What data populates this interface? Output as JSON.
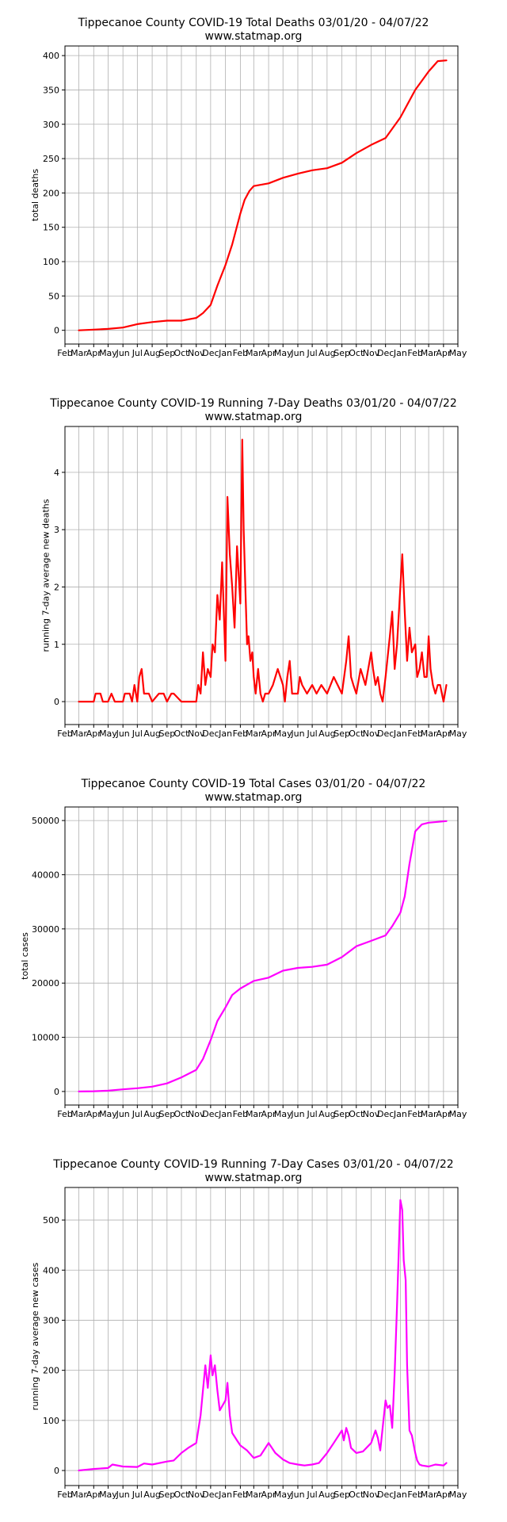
{
  "chart_data": [
    {
      "type": "line",
      "title": "Tippecanoe County COVID-19 Total Deaths 03/01/20 - 04/07/22",
      "subtitle": "www.statmap.org",
      "ylabel": "total deaths",
      "xlabel": "",
      "color": "#ff0000",
      "grid": true,
      "ylim": [
        -20,
        414
      ],
      "yticks": [
        0,
        50,
        100,
        150,
        200,
        250,
        300,
        350,
        400
      ],
      "xlim": [
        "2020-02-01",
        "2022-05-01"
      ],
      "xtick_labels": [
        "Feb",
        "Mar",
        "Apr",
        "May",
        "Jun",
        "Jul",
        "Aug",
        "Sep",
        "Oct",
        "Nov",
        "Dec",
        "Jan",
        "Feb",
        "Mar",
        "Apr",
        "May",
        "Jun",
        "Jul",
        "Aug",
        "Sep",
        "Oct",
        "Nov",
        "Dec",
        "Jan",
        "Feb",
        "Mar",
        "Apr",
        "May"
      ],
      "series": [
        {
          "x": [
            "2020-03-01",
            "2020-04-01",
            "2020-05-01",
            "2020-06-01",
            "2020-07-01",
            "2020-08-01",
            "2020-09-01",
            "2020-10-01",
            "2020-11-01",
            "2020-11-15",
            "2020-12-01",
            "2020-12-15",
            "2021-01-01",
            "2021-01-15",
            "2021-02-01",
            "2021-02-10",
            "2021-02-20",
            "2021-03-01",
            "2021-04-01",
            "2021-05-01",
            "2021-06-01",
            "2021-07-01",
            "2021-08-01",
            "2021-09-01",
            "2021-10-01",
            "2021-11-01",
            "2021-12-01",
            "2022-01-01",
            "2022-02-01",
            "2022-03-01",
            "2022-03-20",
            "2022-04-07"
          ],
          "y": [
            0,
            1,
            2,
            4,
            9,
            12,
            14,
            14,
            18,
            25,
            37,
            65,
            95,
            125,
            170,
            190,
            203,
            210,
            214,
            222,
            228,
            233,
            236,
            244,
            258,
            270,
            280,
            310,
            350,
            377,
            392,
            393
          ]
        }
      ]
    },
    {
      "type": "line",
      "title": "Tippecanoe County COVID-19 Running 7-Day Deaths 03/01/20 - 04/07/22",
      "subtitle": "www.statmap.org",
      "ylabel": "running 7-day average new deaths",
      "xlabel": "",
      "color": "#ff0000",
      "grid": true,
      "ylim": [
        -0.4,
        4.8
      ],
      "yticks": [
        0,
        1,
        2,
        3,
        4
      ],
      "xlim": [
        "2020-02-01",
        "2022-05-01"
      ],
      "xtick_labels": [
        "Feb",
        "Mar",
        "Apr",
        "May",
        "Jun",
        "Jul",
        "Aug",
        "Sep",
        "Oct",
        "Nov",
        "Dec",
        "Jan",
        "Feb",
        "Mar",
        "Apr",
        "May",
        "Jun",
        "Jul",
        "Aug",
        "Sep",
        "Oct",
        "Nov",
        "Dec",
        "Jan",
        "Feb",
        "Mar",
        "Apr",
        "May"
      ],
      "series": [
        {
          "x": [
            "2020-03-01",
            "2020-04-01",
            "2020-04-05",
            "2020-04-15",
            "2020-04-20",
            "2020-05-01",
            "2020-05-08",
            "2020-05-15",
            "2020-06-01",
            "2020-06-05",
            "2020-06-15",
            "2020-06-20",
            "2020-06-25",
            "2020-07-01",
            "2020-07-05",
            "2020-07-10",
            "2020-07-15",
            "2020-07-25",
            "2020-08-01",
            "2020-08-15",
            "2020-08-25",
            "2020-09-01",
            "2020-09-10",
            "2020-09-15",
            "2020-10-01",
            "2020-11-01",
            "2020-11-05",
            "2020-11-10",
            "2020-11-15",
            "2020-11-20",
            "2020-11-25",
            "2020-12-01",
            "2020-12-05",
            "2020-12-10",
            "2020-12-15",
            "2020-12-20",
            "2020-12-25",
            "2021-01-01",
            "2021-01-05",
            "2021-01-10",
            "2021-01-15",
            "2021-01-20",
            "2021-01-25",
            "2021-02-01",
            "2021-02-05",
            "2021-02-08",
            "2021-02-12",
            "2021-02-15",
            "2021-02-18",
            "2021-02-22",
            "2021-02-26",
            "2021-03-01",
            "2021-03-05",
            "2021-03-10",
            "2021-03-15",
            "2021-03-20",
            "2021-03-25",
            "2021-04-01",
            "2021-04-10",
            "2021-04-20",
            "2021-05-01",
            "2021-05-05",
            "2021-05-10",
            "2021-05-15",
            "2021-05-20",
            "2021-06-01",
            "2021-06-05",
            "2021-06-10",
            "2021-06-20",
            "2021-07-01",
            "2021-07-10",
            "2021-07-20",
            "2021-08-01",
            "2021-08-15",
            "2021-09-01",
            "2021-09-10",
            "2021-09-15",
            "2021-09-20",
            "2021-09-25",
            "2021-10-01",
            "2021-10-10",
            "2021-10-20",
            "2021-11-01",
            "2021-11-05",
            "2021-11-10",
            "2021-11-15",
            "2021-11-20",
            "2021-11-25",
            "2021-12-01",
            "2021-12-10",
            "2021-12-15",
            "2021-12-20",
            "2021-12-25",
            "2022-01-01",
            "2022-01-05",
            "2022-01-10",
            "2022-01-15",
            "2022-01-20",
            "2022-01-25",
            "2022-02-01",
            "2022-02-05",
            "2022-02-10",
            "2022-02-15",
            "2022-02-20",
            "2022-02-25",
            "2022-03-01",
            "2022-03-05",
            "2022-03-10",
            "2022-03-15",
            "2022-03-20",
            "2022-03-25",
            "2022-04-01",
            "2022-04-07"
          ],
          "y": [
            0,
            0,
            0.14,
            0.14,
            0,
            0,
            0.14,
            0,
            0,
            0.14,
            0.14,
            0,
            0.29,
            0,
            0.43,
            0.57,
            0.14,
            0.14,
            0,
            0.14,
            0.14,
            0,
            0.14,
            0.14,
            0,
            0,
            0.29,
            0.14,
            0.86,
            0.29,
            0.57,
            0.43,
            1.0,
            0.86,
            1.86,
            1.43,
            2.43,
            0.71,
            3.57,
            2.57,
            2.0,
            1.29,
            2.71,
            1.71,
            4.57,
            3.0,
            1.86,
            1.0,
            1.14,
            0.71,
            0.86,
            0.43,
            0.14,
            0.57,
            0.14,
            0,
            0.14,
            0.14,
            0.29,
            0.57,
            0.29,
            0,
            0.43,
            0.71,
            0.14,
            0.14,
            0.43,
            0.29,
            0.14,
            0.29,
            0.14,
            0.29,
            0.14,
            0.43,
            0.14,
            0.71,
            1.14,
            0.43,
            0.29,
            0.14,
            0.57,
            0.29,
            0.86,
            0.57,
            0.29,
            0.43,
            0.14,
            0,
            0.43,
            1.14,
            1.57,
            0.57,
            1.0,
            2.0,
            2.57,
            1.57,
            0.71,
            1.29,
            0.86,
            1.0,
            0.43,
            0.57,
            0.86,
            0.43,
            0.43,
            1.14,
            0.57,
            0.29,
            0.14,
            0.29,
            0.29,
            0,
            0.29
          ]
        }
      ]
    },
    {
      "type": "line",
      "title": "Tippecanoe County COVID-19 Total Cases 03/01/20 - 04/07/22",
      "subtitle": "www.statmap.org",
      "ylabel": "total cases",
      "xlabel": "",
      "color": "#ff00ff",
      "grid": true,
      "ylim": [
        -2500,
        52500
      ],
      "yticks": [
        0,
        10000,
        20000,
        30000,
        40000,
        50000
      ],
      "xlim": [
        "2020-02-01",
        "2022-05-01"
      ],
      "xtick_labels": [
        "Feb",
        "Mar",
        "Apr",
        "May",
        "Jun",
        "Jul",
        "Aug",
        "Sep",
        "Oct",
        "Nov",
        "Dec",
        "Jan",
        "Feb",
        "Mar",
        "Apr",
        "May",
        "Jun",
        "Jul",
        "Aug",
        "Sep",
        "Oct",
        "Nov",
        "Dec",
        "Jan",
        "Feb",
        "Mar",
        "Apr",
        "May"
      ],
      "series": [
        {
          "x": [
            "2020-03-01",
            "2020-04-01",
            "2020-05-01",
            "2020-06-01",
            "2020-07-01",
            "2020-08-01",
            "2020-09-01",
            "2020-10-01",
            "2020-11-01",
            "2020-11-15",
            "2020-12-01",
            "2020-12-15",
            "2021-01-01",
            "2021-01-15",
            "2021-02-01",
            "2021-03-01",
            "2021-04-01",
            "2021-05-01",
            "2021-06-01",
            "2021-07-01",
            "2021-08-01",
            "2021-09-01",
            "2021-10-01",
            "2021-11-01",
            "2021-12-01",
            "2021-12-15",
            "2022-01-01",
            "2022-01-10",
            "2022-01-20",
            "2022-02-01",
            "2022-02-15",
            "2022-03-01",
            "2022-04-07"
          ],
          "y": [
            0,
            50,
            150,
            400,
            600,
            900,
            1500,
            2600,
            4000,
            6000,
            9500,
            13000,
            15500,
            17800,
            19000,
            20400,
            21000,
            22300,
            22800,
            23000,
            23400,
            24800,
            26800,
            27800,
            28800,
            30500,
            33000,
            36000,
            42000,
            48000,
            49300,
            49600,
            49900
          ]
        }
      ]
    },
    {
      "type": "line",
      "title": "Tippecanoe County COVID-19 Running 7-Day Cases 03/01/20 - 04/07/22",
      "subtitle": "www.statmap.org",
      "ylabel": "running 7-day average new cases",
      "xlabel": "",
      "color": "#ff00ff",
      "grid": true,
      "ylim": [
        -30,
        565
      ],
      "yticks": [
        0,
        100,
        200,
        300,
        400,
        500
      ],
      "xlim": [
        "2020-02-01",
        "2022-05-01"
      ],
      "xtick_labels": [
        "Feb",
        "Mar",
        "Apr",
        "May",
        "Jun",
        "Jul",
        "Aug",
        "Sep",
        "Oct",
        "Nov",
        "Dec",
        "Jan",
        "Feb",
        "Mar",
        "Apr",
        "May",
        "Jun",
        "Jul",
        "Aug",
        "Sep",
        "Oct",
        "Nov",
        "Dec",
        "Jan",
        "Feb",
        "Mar",
        "Apr",
        "May"
      ],
      "series": [
        {
          "x": [
            "2020-03-01",
            "2020-04-01",
            "2020-05-01",
            "2020-05-10",
            "2020-06-01",
            "2020-07-01",
            "2020-07-15",
            "2020-08-01",
            "2020-09-01",
            "2020-09-15",
            "2020-10-01",
            "2020-10-15",
            "2020-11-01",
            "2020-11-10",
            "2020-11-20",
            "2020-11-25",
            "2020-12-01",
            "2020-12-05",
            "2020-12-10",
            "2020-12-15",
            "2020-12-20",
            "2021-01-01",
            "2021-01-05",
            "2021-01-10",
            "2021-01-15",
            "2021-01-25",
            "2021-02-01",
            "2021-02-15",
            "2021-03-01",
            "2021-03-15",
            "2021-04-01",
            "2021-04-15",
            "2021-05-01",
            "2021-05-15",
            "2021-06-01",
            "2021-06-15",
            "2021-07-01",
            "2021-07-15",
            "2021-08-01",
            "2021-08-15",
            "2021-09-01",
            "2021-09-05",
            "2021-09-10",
            "2021-09-15",
            "2021-09-20",
            "2021-10-01",
            "2021-10-15",
            "2021-11-01",
            "2021-11-10",
            "2021-11-15",
            "2021-11-20",
            "2021-12-01",
            "2021-12-05",
            "2021-12-10",
            "2021-12-15",
            "2021-12-20",
            "2021-12-25",
            "2022-01-01",
            "2022-01-05",
            "2022-01-08",
            "2022-01-12",
            "2022-01-15",
            "2022-01-20",
            "2022-01-25",
            "2022-02-01",
            "2022-02-05",
            "2022-02-10",
            "2022-02-15",
            "2022-03-01",
            "2022-03-15",
            "2022-04-01",
            "2022-04-07"
          ],
          "y": [
            0,
            3,
            5,
            12,
            8,
            7,
            14,
            12,
            18,
            20,
            35,
            45,
            55,
            110,
            210,
            165,
            230,
            190,
            210,
            160,
            120,
            140,
            175,
            110,
            75,
            60,
            50,
            40,
            25,
            30,
            55,
            35,
            22,
            15,
            12,
            10,
            12,
            15,
            35,
            55,
            80,
            60,
            85,
            70,
            45,
            35,
            38,
            55,
            80,
            65,
            40,
            140,
            125,
            130,
            85,
            195,
            330,
            540,
            520,
            420,
            380,
            210,
            80,
            70,
            35,
            20,
            12,
            10,
            8,
            12,
            10,
            15
          ]
        }
      ]
    }
  ]
}
